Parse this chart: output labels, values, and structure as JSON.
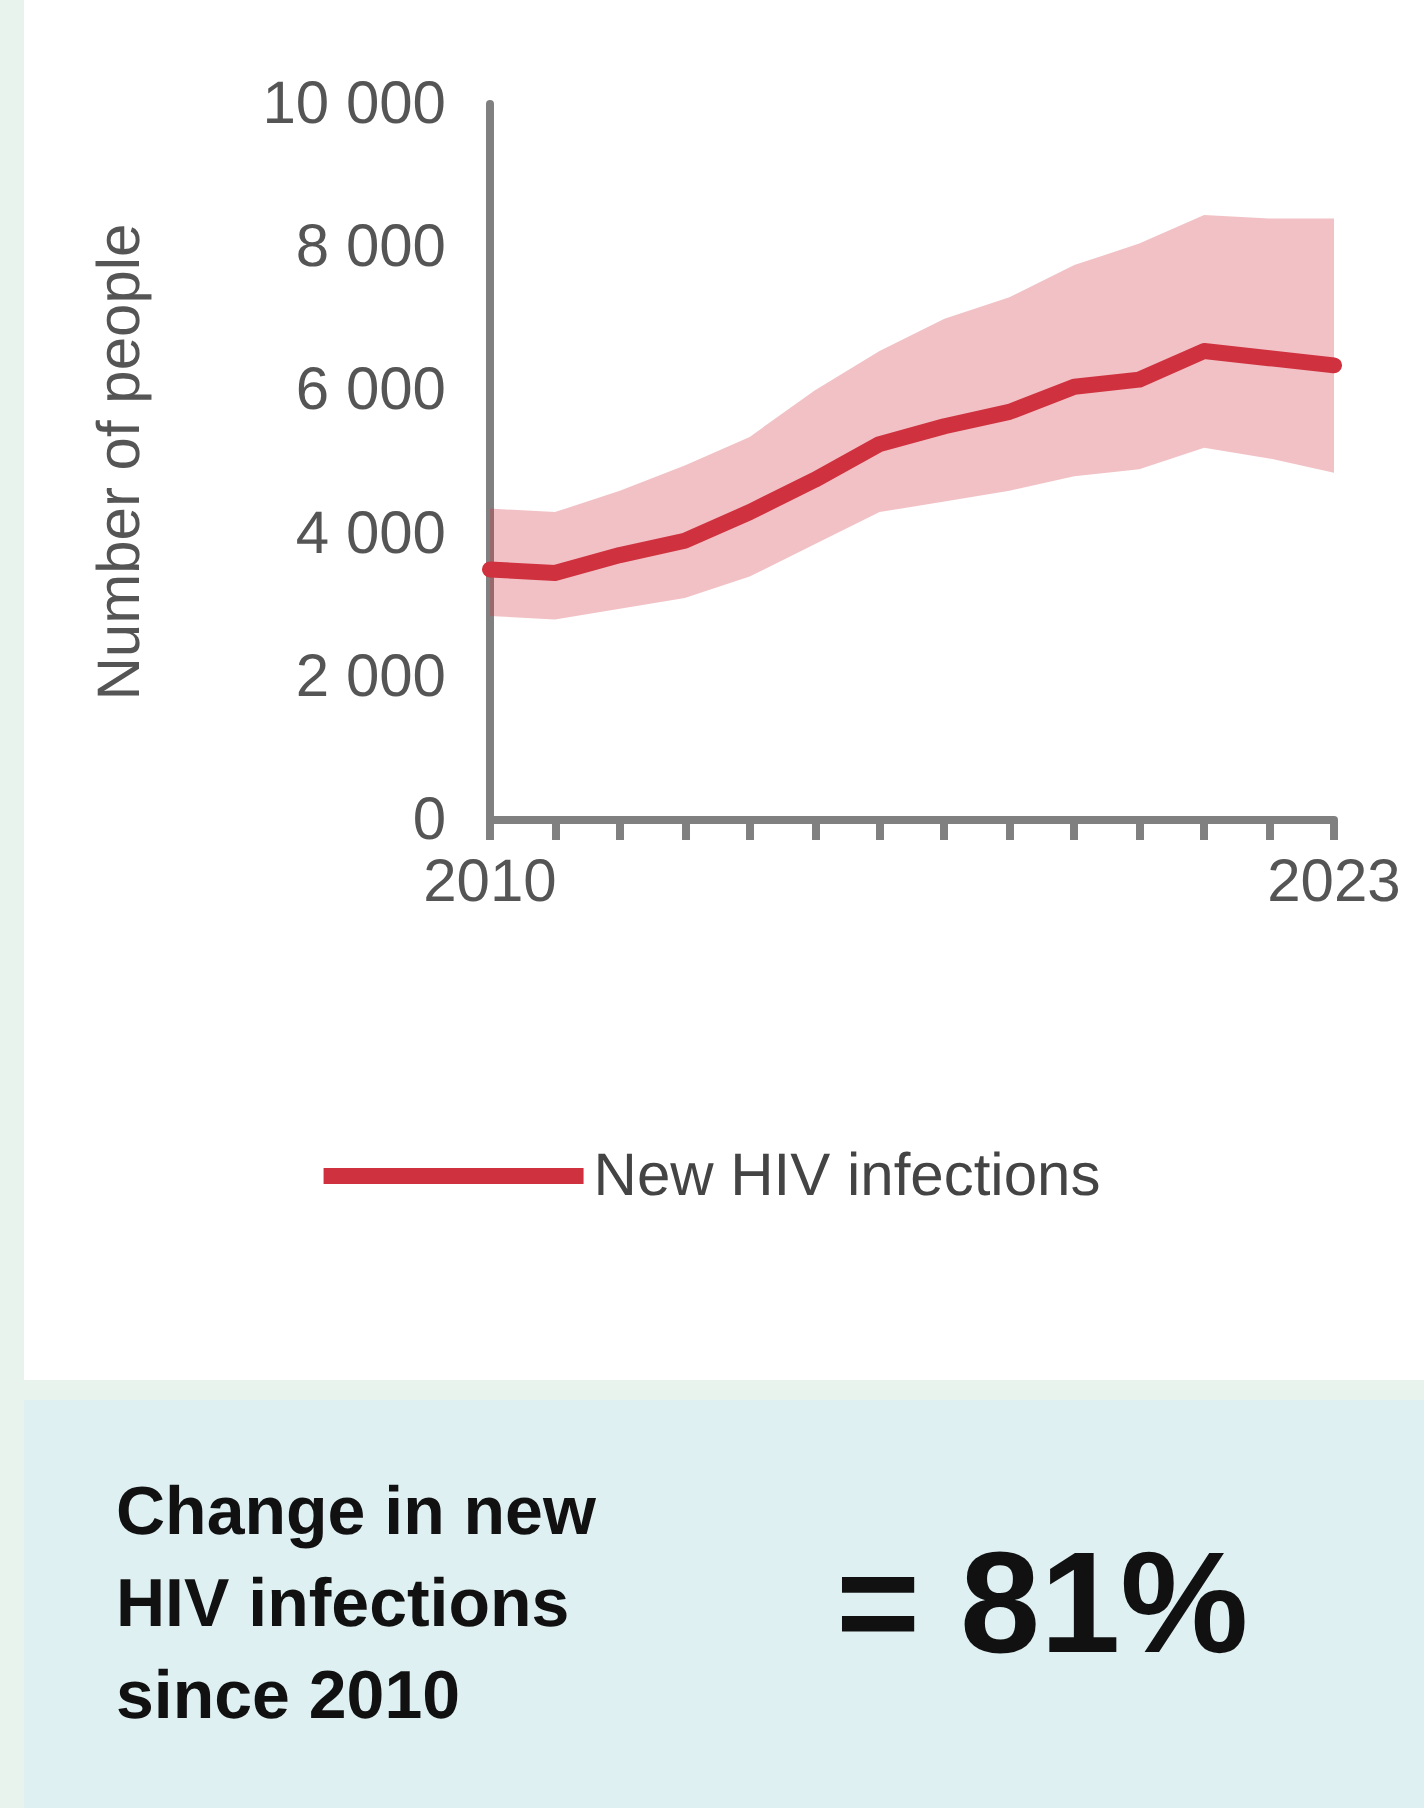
{
  "chart_data": {
    "type": "line",
    "ylabel": "Number of people",
    "x": [
      2010,
      2011,
      2012,
      2013,
      2014,
      2015,
      2016,
      2017,
      2018,
      2019,
      2020,
      2021,
      2022,
      2023
    ],
    "series": [
      {
        "name": "New HIV infections",
        "color": "#d0313f",
        "values": [
          3500,
          3450,
          3700,
          3900,
          4300,
          4750,
          5250,
          5500,
          5700,
          6050,
          6150,
          6550,
          6450,
          6350
        ],
        "lower": [
          2850,
          2800,
          2950,
          3100,
          3400,
          3850,
          4300,
          4450,
          4600,
          4800,
          4900,
          5200,
          5050,
          4850
        ],
        "upper": [
          4350,
          4300,
          4600,
          4950,
          5350,
          6000,
          6550,
          7000,
          7300,
          7750,
          8050,
          8450,
          8400,
          8400
        ]
      }
    ],
    "xlim": [
      2010,
      2023
    ],
    "xticks": [
      2010,
      {
        "value": 2011,
        "label": null
      },
      {
        "value": 2012,
        "label": null
      },
      {
        "value": 2013,
        "label": null
      },
      {
        "value": 2014,
        "label": null
      },
      {
        "value": 2015,
        "label": null
      },
      {
        "value": 2016,
        "label": null
      },
      {
        "value": 2017,
        "label": null
      },
      {
        "value": 2018,
        "label": null
      },
      {
        "value": 2019,
        "label": null
      },
      {
        "value": 2020,
        "label": null
      },
      {
        "value": 2021,
        "label": null
      },
      {
        "value": 2022,
        "label": null
      },
      2023
    ],
    "ylim": [
      0,
      10000
    ],
    "yticks": [
      0,
      2000,
      4000,
      6000,
      8000,
      10000
    ],
    "grid": false,
    "legend": "bottom",
    "line_style": "solid",
    "annotations": [
      "Change in new HIV infections since 2010",
      "= 81%"
    ]
  }
}
